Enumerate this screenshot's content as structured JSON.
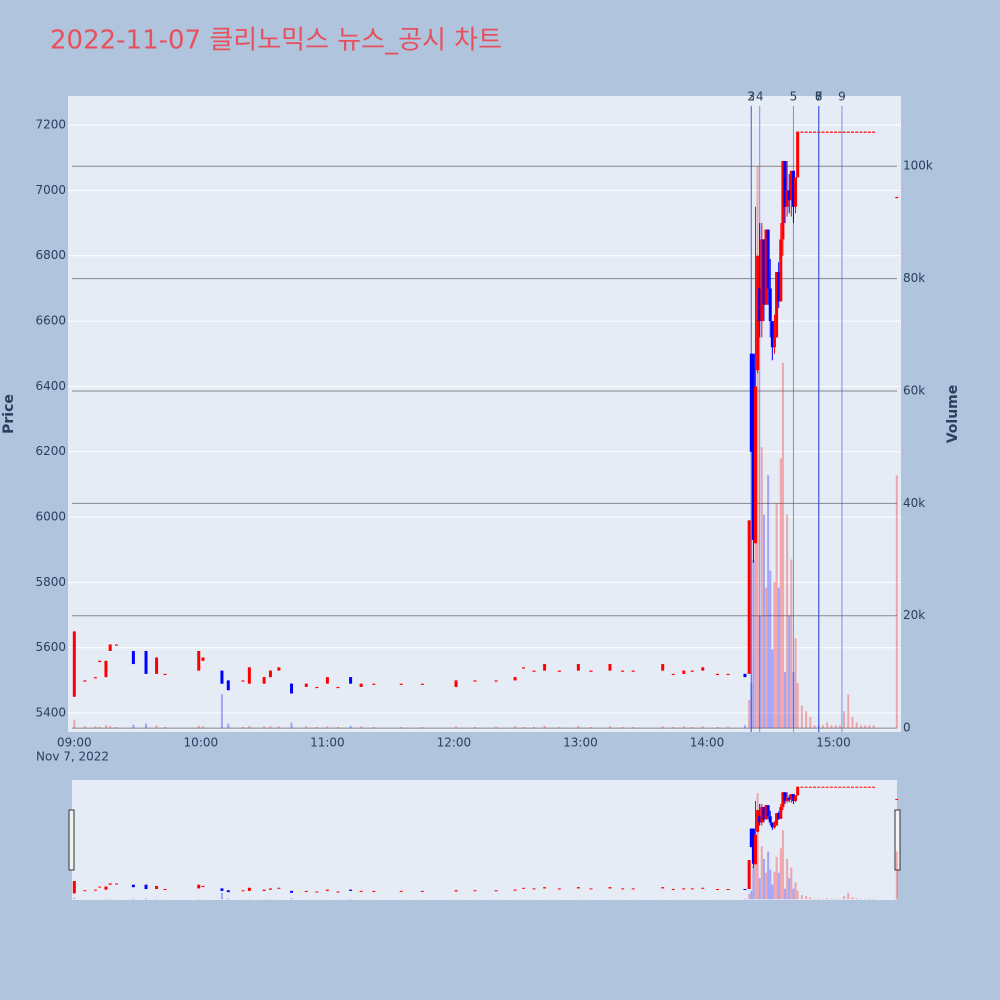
{
  "chart_data": {
    "type": "candlestick",
    "title": "2022-11-07 클리노믹스 뉴스_공시 차트",
    "y_axis_label": "Price",
    "y2_axis_label": "Volume",
    "x_date_label": "Nov 7, 2022",
    "increasing_color": "#ff0000",
    "decreasing_color": "#0000ff",
    "xlim": [
      "08:57",
      "15:32"
    ],
    "xticks": [
      "09:00",
      "10:00",
      "11:00",
      "12:00",
      "13:00",
      "14:00",
      "15:00"
    ],
    "ylim": [
      5342,
      7289
    ],
    "yticks": [
      5400,
      5600,
      5800,
      6000,
      6200,
      6400,
      6600,
      6800,
      7000,
      7200
    ],
    "y2lim": [
      -700,
      112500
    ],
    "y2ticks": [
      0,
      {
        "value": 20000,
        "label": "20k"
      },
      {
        "value": 40000,
        "label": "40k"
      },
      {
        "value": 60000,
        "label": "60k"
      },
      {
        "value": 80000,
        "label": "80k"
      },
      {
        "value": 100000,
        "label": "100k"
      }
    ],
    "grid": true,
    "news": [
      {
        "time": "14:21",
        "label": "2"
      },
      {
        "time": "14:21",
        "label": "3"
      },
      {
        "time": "14:25",
        "label": "4"
      },
      {
        "time": "14:41",
        "label": "5"
      },
      {
        "time": "14:53",
        "label": "6"
      },
      {
        "time": "14:53",
        "label": "7"
      },
      {
        "time": "14:53",
        "label": "8"
      },
      {
        "time": "15:04",
        "label": "9"
      }
    ],
    "x": [
      "09:00",
      "09:05",
      "09:10",
      "09:12",
      "09:15",
      "09:17",
      "09:20",
      "09:28",
      "09:34",
      "09:39",
      "09:43",
      "09:59",
      "10:01",
      "10:10",
      "10:13",
      "10:20",
      "10:23",
      "10:30",
      "10:33",
      "10:37",
      "10:43",
      "10:50",
      "10:55",
      "11:00",
      "11:05",
      "11:11",
      "11:16",
      "11:22",
      "11:35",
      "11:45",
      "12:01",
      "12:10",
      "12:20",
      "12:29",
      "12:33",
      "12:38",
      "12:43",
      "12:50",
      "12:59",
      "13:05",
      "13:14",
      "13:20",
      "13:25",
      "13:39",
      "13:44",
      "13:49",
      "13:53",
      "13:58",
      "14:05",
      "14:10",
      "14:18",
      "14:20",
      "14:21",
      "14:22",
      "14:23",
      "14:24",
      "14:25",
      "14:26",
      "14:27",
      "14:28",
      "14:29",
      "14:30",
      "14:31",
      "14:32",
      "14:33",
      "14:34",
      "14:35",
      "14:36",
      "14:37",
      "14:38",
      "14:39",
      "14:40",
      "14:41",
      "14:42",
      "14:43",
      "14:45",
      "14:47",
      "14:49",
      "14:51",
      "14:53",
      "14:55",
      "14:57",
      "14:59",
      "15:01",
      "15:03",
      "15:05",
      "15:07",
      "15:09",
      "15:11",
      "15:13",
      "15:15",
      "15:17",
      "15:19",
      "15:30"
    ],
    "open": [
      5450,
      5500,
      5510,
      5560,
      5510,
      5590,
      5610,
      5590,
      5590,
      5520,
      5520,
      5530,
      5560,
      5530,
      5500,
      5500,
      5490,
      5490,
      5510,
      5530,
      5490,
      5480,
      5480,
      5490,
      5480,
      5510,
      5480,
      5490,
      5490,
      5490,
      5480,
      5500,
      5500,
      5500,
      5540,
      5530,
      5530,
      5530,
      5530,
      5530,
      5530,
      5530,
      5530,
      5530,
      5520,
      5520,
      5530,
      5530,
      5520,
      5520,
      5520,
      5520,
      6500,
      6500,
      5920,
      6450,
      6700,
      6600,
      6850,
      6650,
      6880,
      6700,
      6600,
      6520,
      6550,
      6750,
      6660,
      6850,
      7090,
      6950,
      7000,
      6970,
      7060,
      6950,
      7040,
      7180,
      7180,
      7180,
      7180,
      7180,
      7180,
      7180,
      7180,
      7180,
      7180,
      7180,
      7180,
      7180,
      7180,
      7180,
      7180,
      7180,
      7180,
      6980
    ],
    "high": [
      5650,
      5500,
      5510,
      5560,
      5560,
      5610,
      5610,
      5590,
      5590,
      5570,
      5520,
      5590,
      5570,
      5530,
      5500,
      5500,
      5540,
      5510,
      5530,
      5540,
      5490,
      5490,
      5480,
      5510,
      5480,
      5510,
      5490,
      5490,
      5490,
      5490,
      5500,
      5500,
      5500,
      5510,
      5540,
      5530,
      5550,
      5530,
      5550,
      5530,
      5550,
      5530,
      5530,
      5550,
      5520,
      5530,
      5530,
      5540,
      5520,
      5520,
      5520,
      5990,
      6500,
      6500,
      6950,
      6800,
      6900,
      6900,
      6850,
      6880,
      6880,
      6790,
      6600,
      6620,
      6750,
      6780,
      6900,
      7090,
      7090,
      7090,
      7050,
      7060,
      7060,
      7040,
      7180,
      7180,
      7180,
      7180,
      7180,
      7180,
      7180,
      7180,
      7180,
      7180,
      7180,
      7180,
      7180,
      7180,
      7180,
      7180,
      7180,
      7180,
      7180,
      6980
    ],
    "low": [
      5450,
      5500,
      5510,
      5560,
      5510,
      5590,
      5610,
      5550,
      5520,
      5520,
      5520,
      5530,
      5560,
      5490,
      5470,
      5500,
      5490,
      5490,
      5510,
      5530,
      5460,
      5480,
      5480,
      5490,
      5480,
      5490,
      5480,
      5490,
      5490,
      5490,
      5480,
      5500,
      5500,
      5500,
      5540,
      5530,
      5530,
      5530,
      5530,
      5530,
      5530,
      5530,
      5530,
      5530,
      5520,
      5520,
      5530,
      5530,
      5520,
      5520,
      5510,
      5520,
      6200,
      5860,
      5920,
      6440,
      6550,
      6550,
      6600,
      6650,
      6650,
      6550,
      6480,
      6500,
      6550,
      6640,
      6660,
      6800,
      6900,
      6920,
      6930,
      6920,
      6900,
      6930,
      7040,
      7180,
      7180,
      7180,
      7180,
      7180,
      7180,
      7180,
      7180,
      7180,
      7180,
      7180,
      7180,
      7180,
      7180,
      7180,
      7180,
      7180,
      7180,
      6980
    ],
    "close": [
      5650,
      5500,
      5510,
      5560,
      5560,
      5610,
      5610,
      5550,
      5520,
      5570,
      5520,
      5590,
      5570,
      5490,
      5470,
      5500,
      5540,
      5510,
      5530,
      5540,
      5460,
      5490,
      5480,
      5510,
      5480,
      5490,
      5490,
      5490,
      5490,
      5490,
      5500,
      5500,
      5500,
      5510,
      5540,
      5530,
      5550,
      5530,
      5550,
      5530,
      5550,
      5530,
      5530,
      5550,
      5520,
      5530,
      5530,
      5540,
      5520,
      5520,
      5510,
      5990,
      6200,
      5930,
      6400,
      6800,
      6600,
      6850,
      6650,
      6880,
      6700,
      6600,
      6520,
      6550,
      6750,
      6660,
      6850,
      7090,
      6950,
      7000,
      6970,
      7060,
      6950,
      7040,
      7180,
      7180,
      7180,
      7180,
      7180,
      7180,
      7180,
      7180,
      7180,
      7180,
      7180,
      7180,
      7180,
      7180,
      7180,
      7180,
      7180,
      7180,
      7180,
      6980
    ],
    "volume": [
      1500,
      300,
      300,
      200,
      500,
      400,
      200,
      600,
      800,
      500,
      200,
      400,
      300,
      6000,
      800,
      200,
      400,
      300,
      300,
      300,
      1000,
      300,
      200,
      300,
      200,
      400,
      300,
      200,
      200,
      200,
      300,
      200,
      200,
      300,
      200,
      200,
      400,
      200,
      400,
      200,
      300,
      200,
      200,
      300,
      200,
      300,
      200,
      300,
      200,
      200,
      500,
      5000,
      8000,
      30000,
      45000,
      100000,
      20000,
      50000,
      38000,
      25000,
      45000,
      28000,
      14000,
      26000,
      40000,
      25000,
      48000,
      65000,
      10000,
      38000,
      20000,
      30000,
      10000,
      16000,
      8000,
      4000,
      3000,
      2000,
      500,
      500,
      500,
      1000,
      500,
      500,
      500,
      3000,
      6000,
      2000,
      1000,
      500,
      500,
      500,
      500,
      45000
    ]
  }
}
